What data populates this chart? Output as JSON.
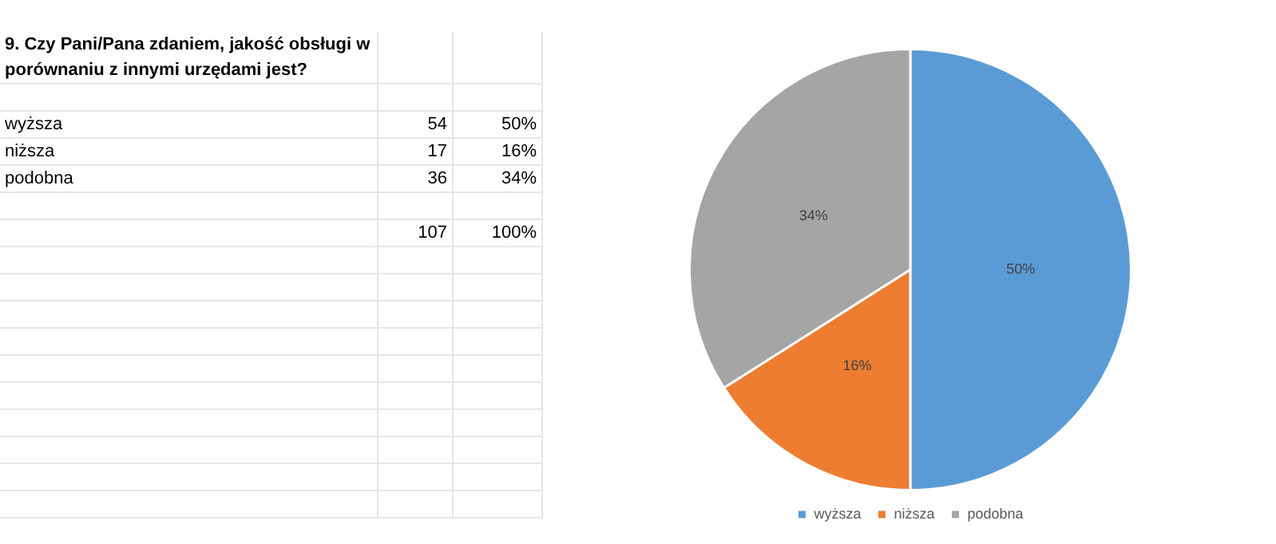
{
  "chart_data": {
    "type": "pie",
    "title": "9. Czy Pani/Pana zdaniem, jakość obsługi w porównaniu z innymi urzędami jest?",
    "categories": [
      "wyższa",
      "niższa",
      "podobna"
    ],
    "values": [
      50,
      16,
      34
    ],
    "value_labels": [
      "50%",
      "16%",
      "34%"
    ],
    "colors": [
      "#5b9bd5",
      "#ed7d31",
      "#a5a5a5"
    ],
    "legend": "bottom",
    "annotations": [
      "54",
      "17",
      "36",
      "107",
      "100%"
    ]
  }
}
